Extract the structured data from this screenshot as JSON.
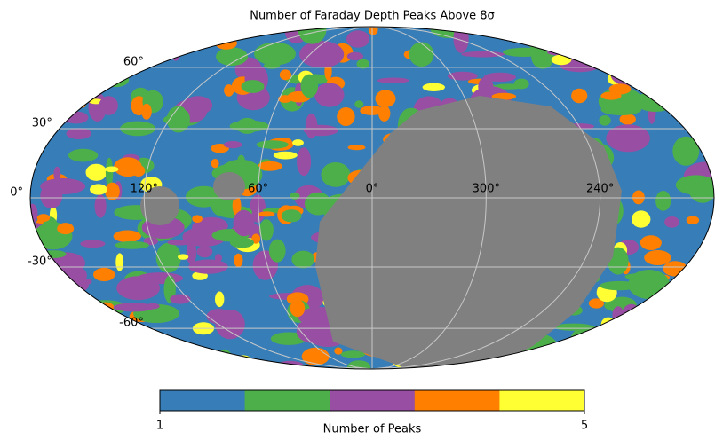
{
  "chart_data": {
    "type": "mollweide",
    "title": "Number of Faraday Depth Peaks Above 8σ",
    "xticks": [
      {
        "value": 120,
        "label": "120°"
      },
      {
        "value": 60,
        "label": "60°"
      },
      {
        "value": 0,
        "label": "0°"
      },
      {
        "value": 300,
        "label": "300°"
      },
      {
        "value": 240,
        "label": "240°"
      }
    ],
    "yticks": [
      {
        "value": 60,
        "label": "60°"
      },
      {
        "value": 30,
        "label": "30°"
      },
      {
        "value": 0,
        "label": "0°"
      },
      {
        "value": -30,
        "label": "-30°"
      },
      {
        "value": -60,
        "label": "-60°"
      }
    ],
    "grid": true,
    "mask_color": "#808080",
    "colorbar": {
      "label": "Number of Peaks",
      "colors": [
        "#377eb8",
        "#4daf4a",
        "#984ea3",
        "#ff7f00",
        "#ffff33"
      ],
      "lim": [
        1,
        5
      ],
      "ticks": [
        1,
        5
      ]
    }
  }
}
